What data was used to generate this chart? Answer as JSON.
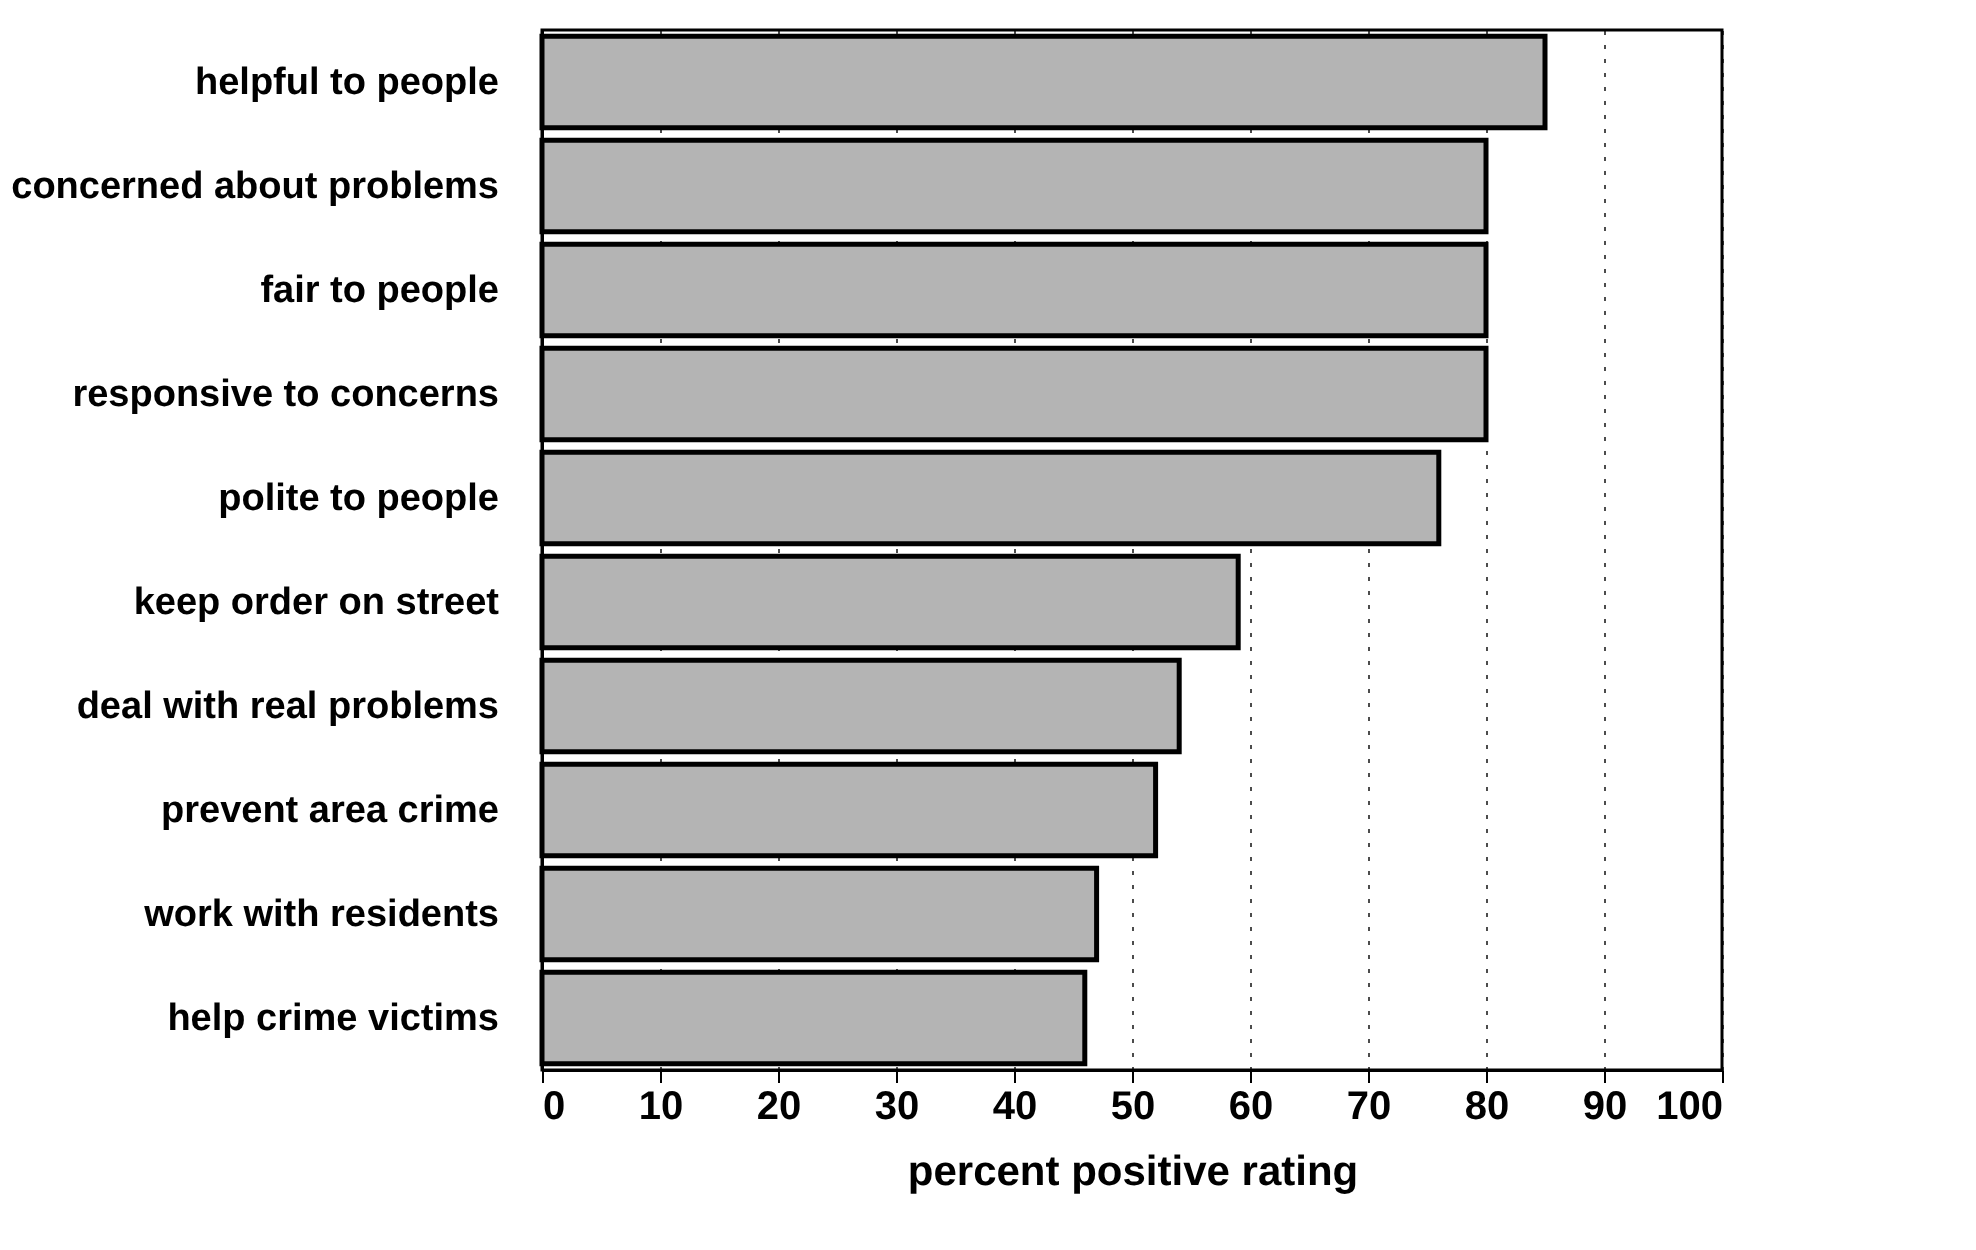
{
  "chart_data": {
    "type": "bar",
    "orientation": "horizontal",
    "xlabel": "percent positive rating",
    "categories": [
      "helpful to people",
      "concerned about problems",
      "fair to people",
      "responsive to concerns",
      "polite to people",
      "keep order on street",
      "deal with real problems",
      "prevent area crime",
      "work with residents",
      "help crime victims"
    ],
    "values": [
      85,
      80,
      80,
      80,
      76,
      59,
      54,
      52,
      47,
      46
    ],
    "color": "#b4b4b4",
    "xlim": [
      0,
      100
    ],
    "xticks": [
      0,
      10,
      20,
      30,
      40,
      50,
      60,
      70,
      80,
      90,
      100
    ],
    "grid": "x"
  }
}
